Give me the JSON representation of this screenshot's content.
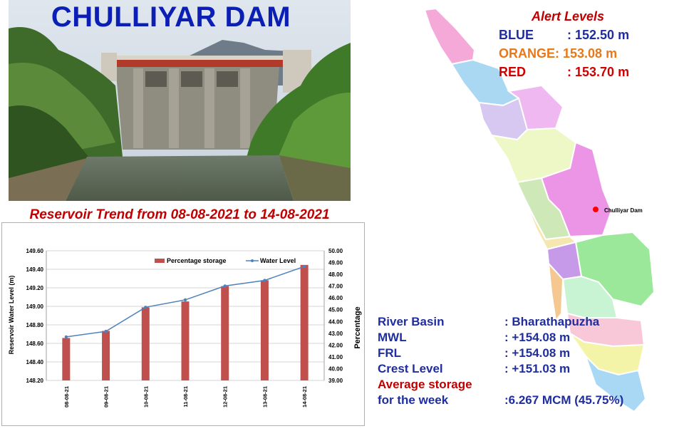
{
  "header": {
    "title": "CHULLIYAR DAM"
  },
  "trend_title": "Reservoir Trend from 08-08-2021 to 14-08-2021",
  "alert_levels": {
    "title": "Alert Levels",
    "levels": [
      {
        "name": "BLUE",
        "sep": ":",
        "value": "152.50 m",
        "color": "#1f2d9e"
      },
      {
        "name": "ORANGE:",
        "sep": "",
        "value": "153.08 m",
        "color": "#e87818"
      },
      {
        "name": "RED",
        "sep": ":",
        "value": "153.70 m",
        "color": "#d00000"
      }
    ]
  },
  "map": {
    "marker_label": "Chulliyar Dam",
    "marker_color": "#ff0000"
  },
  "info": {
    "river_basin_label": "River Basin",
    "river_basin_value": ": Bharathapuzha",
    "mwl_label": "MWL",
    "mwl_value": ": +154.08 m",
    "frl_label": "FRL",
    "frl_value": ": +154.08 m",
    "crest_label": "Crest Level",
    "crest_value": ": +151.03 m",
    "avg_label_1": "Average storage",
    "avg_label_2": "for the week",
    "avg_value": ":6.267 MCM (45.75%)"
  },
  "chart_data": {
    "type": "bar",
    "categories": [
      "08-08-21",
      "09-08-21",
      "10-08-21",
      "11-08-21",
      "12-08-21",
      "13-08-21",
      "14-08-21"
    ],
    "series": [
      {
        "name": "Percentage storage",
        "kind": "bar",
        "axis": "right",
        "color": "#c0504d",
        "values": [
          42.6,
          43.2,
          45.2,
          45.7,
          47.0,
          47.5,
          48.8
        ]
      },
      {
        "name": "Water Level",
        "kind": "line",
        "axis": "left",
        "color": "#4f81bd",
        "values": [
          148.67,
          148.73,
          148.99,
          149.07,
          149.22,
          149.28,
          149.43
        ]
      }
    ],
    "ylabel_left": "Reservoir Water Level (m)",
    "ylabel_right": "Percentage",
    "ylim_left": [
      148.2,
      149.6
    ],
    "ylim_right": [
      39.0,
      50.0
    ],
    "yticks_left": [
      "149.60",
      "149.40",
      "149.20",
      "149.00",
      "148.80",
      "148.60",
      "148.40",
      "148.20"
    ],
    "yticks_right": [
      "50.00",
      "49.00",
      "48.00",
      "47.00",
      "46.00",
      "45.00",
      "44.00",
      "43.00",
      "42.00",
      "41.00",
      "40.00",
      "39.00"
    ],
    "grid": true,
    "legend": "top"
  }
}
